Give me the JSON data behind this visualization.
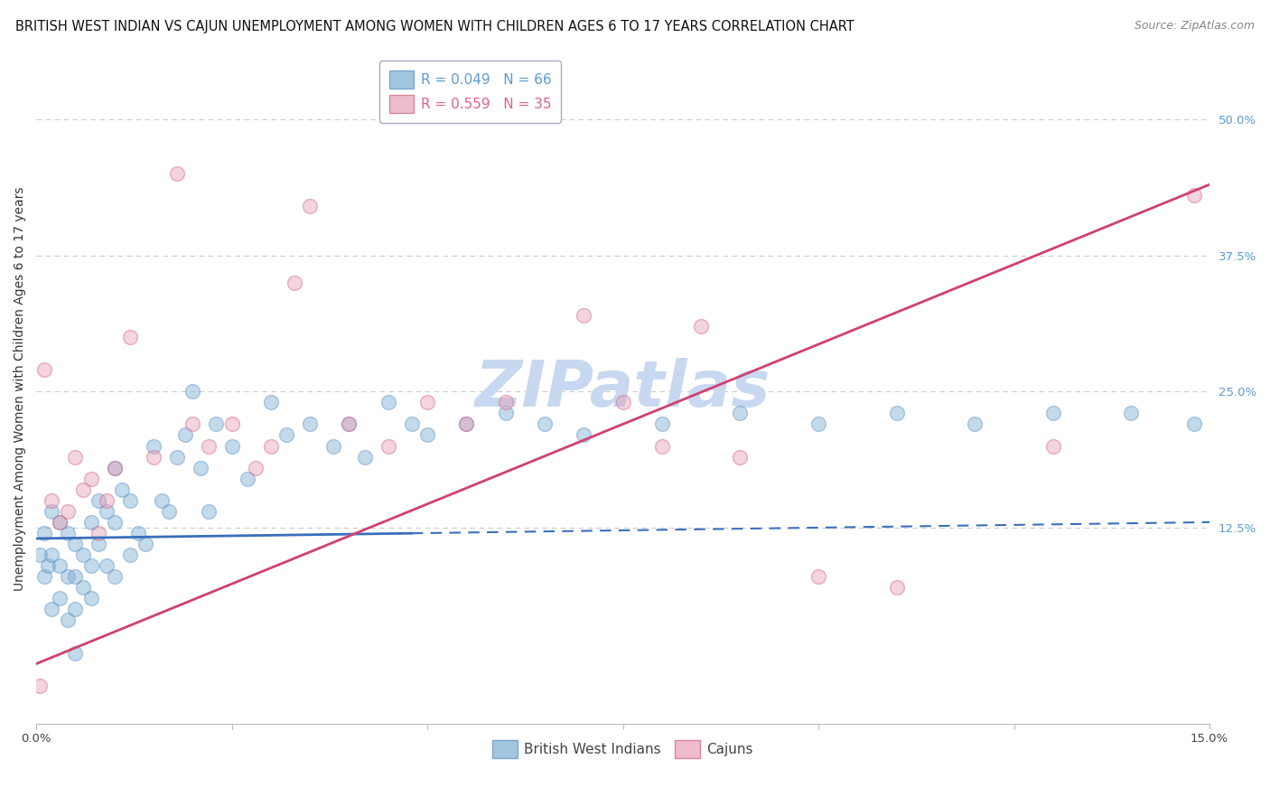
{
  "title": "BRITISH WEST INDIAN VS CAJUN UNEMPLOYMENT AMONG WOMEN WITH CHILDREN AGES 6 TO 17 YEARS CORRELATION CHART",
  "source": "Source: ZipAtlas.com",
  "ylabel": "Unemployment Among Women with Children Ages 6 to 17 years",
  "xmin": 0.0,
  "xmax": 0.15,
  "ymin": -0.055,
  "ymax": 0.56,
  "yticks": [
    0.0,
    0.125,
    0.25,
    0.375,
    0.5
  ],
  "ytick_labels": [
    "",
    "12.5%",
    "25.0%",
    "37.5%",
    "50.0%"
  ],
  "xticks": [
    0.0,
    0.025,
    0.05,
    0.075,
    0.1,
    0.125,
    0.15
  ],
  "xtick_labels": [
    "0.0%",
    "",
    "",
    "",
    "",
    "",
    "15.0%"
  ],
  "legend_r1": "R = 0.049",
  "legend_n1": "N = 66",
  "legend_r2": "R = 0.559",
  "legend_n2": "N = 35",
  "legend_color1": "#5b9bd5",
  "legend_color2": "#e06090",
  "series1_color": "#7bafd4",
  "series2_color": "#e8a0b8",
  "series1_edge": "#5b8fc4",
  "series2_edge": "#d06080",
  "trend1_color": "#3a6fbc",
  "trend2_color": "#d04070",
  "watermark": "ZIPatlas",
  "watermark_color": "#c8d8f0",
  "background_color": "#ffffff",
  "grid_color": "#cccccc",
  "title_fontsize": 10.5,
  "source_fontsize": 9,
  "ylabel_fontsize": 10,
  "tick_fontsize": 9.5,
  "legend_fontsize": 11,
  "marker_size": 130,
  "marker_alpha": 0.45,
  "marker_lw": 1.0,
  "trend1_x0": 0.0,
  "trend1_x1": 0.15,
  "trend1_y0": 0.115,
  "trend1_y1": 0.13,
  "trend1_solid_end": 0.048,
  "trend2_x0": 0.0,
  "trend2_x1": 0.15,
  "trend2_y0": 0.0,
  "trend2_y1": 0.44,
  "bwi_x": [
    0.0005,
    0.001,
    0.001,
    0.0015,
    0.002,
    0.002,
    0.002,
    0.003,
    0.003,
    0.003,
    0.004,
    0.004,
    0.004,
    0.005,
    0.005,
    0.005,
    0.005,
    0.006,
    0.006,
    0.007,
    0.007,
    0.007,
    0.008,
    0.008,
    0.009,
    0.009,
    0.01,
    0.01,
    0.01,
    0.011,
    0.012,
    0.012,
    0.013,
    0.014,
    0.015,
    0.016,
    0.017,
    0.018,
    0.019,
    0.02,
    0.021,
    0.022,
    0.023,
    0.025,
    0.027,
    0.03,
    0.032,
    0.035,
    0.038,
    0.04,
    0.042,
    0.045,
    0.048,
    0.05,
    0.055,
    0.06,
    0.065,
    0.07,
    0.08,
    0.09,
    0.1,
    0.11,
    0.12,
    0.13,
    0.14,
    0.148
  ],
  "bwi_y": [
    0.1,
    0.12,
    0.08,
    0.09,
    0.14,
    0.1,
    0.05,
    0.13,
    0.09,
    0.06,
    0.12,
    0.08,
    0.04,
    0.11,
    0.08,
    0.05,
    0.01,
    0.1,
    0.07,
    0.13,
    0.09,
    0.06,
    0.15,
    0.11,
    0.14,
    0.09,
    0.18,
    0.13,
    0.08,
    0.16,
    0.15,
    0.1,
    0.12,
    0.11,
    0.2,
    0.15,
    0.14,
    0.19,
    0.21,
    0.25,
    0.18,
    0.14,
    0.22,
    0.2,
    0.17,
    0.24,
    0.21,
    0.22,
    0.2,
    0.22,
    0.19,
    0.24,
    0.22,
    0.21,
    0.22,
    0.23,
    0.22,
    0.21,
    0.22,
    0.23,
    0.22,
    0.23,
    0.22,
    0.23,
    0.23,
    0.22
  ],
  "cajun_x": [
    0.0005,
    0.001,
    0.002,
    0.003,
    0.004,
    0.005,
    0.006,
    0.007,
    0.008,
    0.009,
    0.01,
    0.012,
    0.015,
    0.018,
    0.02,
    0.022,
    0.025,
    0.028,
    0.03,
    0.033,
    0.035,
    0.04,
    0.045,
    0.05,
    0.055,
    0.06,
    0.07,
    0.075,
    0.08,
    0.085,
    0.09,
    0.1,
    0.11,
    0.13,
    0.148
  ],
  "cajun_y": [
    -0.02,
    0.27,
    0.15,
    0.13,
    0.14,
    0.19,
    0.16,
    0.17,
    0.12,
    0.15,
    0.18,
    0.3,
    0.19,
    0.45,
    0.22,
    0.2,
    0.22,
    0.18,
    0.2,
    0.35,
    0.42,
    0.22,
    0.2,
    0.24,
    0.22,
    0.24,
    0.32,
    0.24,
    0.2,
    0.31,
    0.19,
    0.08,
    0.07,
    0.2,
    0.43
  ]
}
